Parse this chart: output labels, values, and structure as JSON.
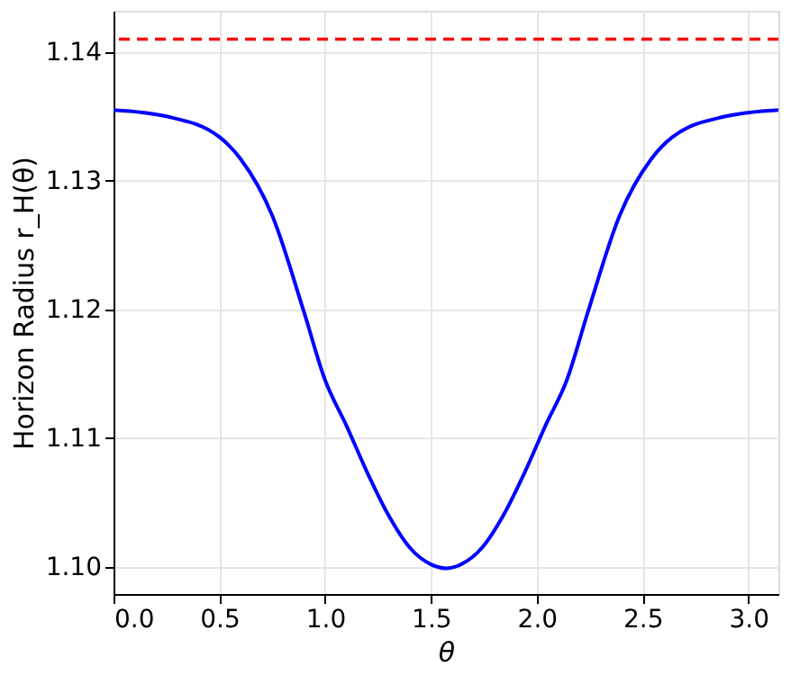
{
  "chart_data": {
    "type": "line",
    "xlabel": "θ",
    "ylabel": "Horizon Radius  r_H(θ)",
    "x": [
      0,
      0.25,
      0.5,
      0.6,
      0.75,
      0.9,
      1.0,
      1.1,
      1.2,
      1.3,
      1.4,
      1.5,
      1.5708,
      1.6416,
      1.7416,
      1.8416,
      1.9416,
      2.0416,
      2.1416,
      2.2416,
      2.3916,
      2.5416,
      2.6416,
      2.8916,
      3.1416
    ],
    "series": [
      {
        "color": "#0000ff",
        "values": [
          1.1355,
          1.135,
          1.1334,
          1.1317,
          1.1273,
          1.1198,
          1.1145,
          1.111,
          1.1073,
          1.104,
          1.1015,
          1.1002,
          1.0999,
          1.1002,
          1.1015,
          1.104,
          1.1073,
          1.111,
          1.1145,
          1.1198,
          1.1273,
          1.1317,
          1.1334,
          1.135,
          1.1355
        ]
      }
    ],
    "ref_lines": [
      {
        "axis": "y",
        "value": 1.141,
        "color": "#ff0000",
        "line_style": "dashed"
      }
    ],
    "xlim": [
      0,
      3.1416
    ],
    "ylim": [
      1.0979,
      1.1432
    ],
    "xticks": [
      {
        "value": 0,
        "label": "0.0"
      },
      {
        "value": 0.5,
        "label": "0.5"
      },
      {
        "value": 1,
        "label": "1.0"
      },
      {
        "value": 1.5,
        "label": "1.5"
      },
      {
        "value": 2,
        "label": "2.0"
      },
      {
        "value": 2.5,
        "label": "2.5"
      },
      {
        "value": 3,
        "label": "3.0"
      }
    ],
    "yticks": [
      {
        "value": 1.1,
        "label": "1.10"
      },
      1.11,
      1.12,
      1.13,
      1.14
    ],
    "grid": true,
    "marker": "none",
    "line_style": "solid"
  }
}
